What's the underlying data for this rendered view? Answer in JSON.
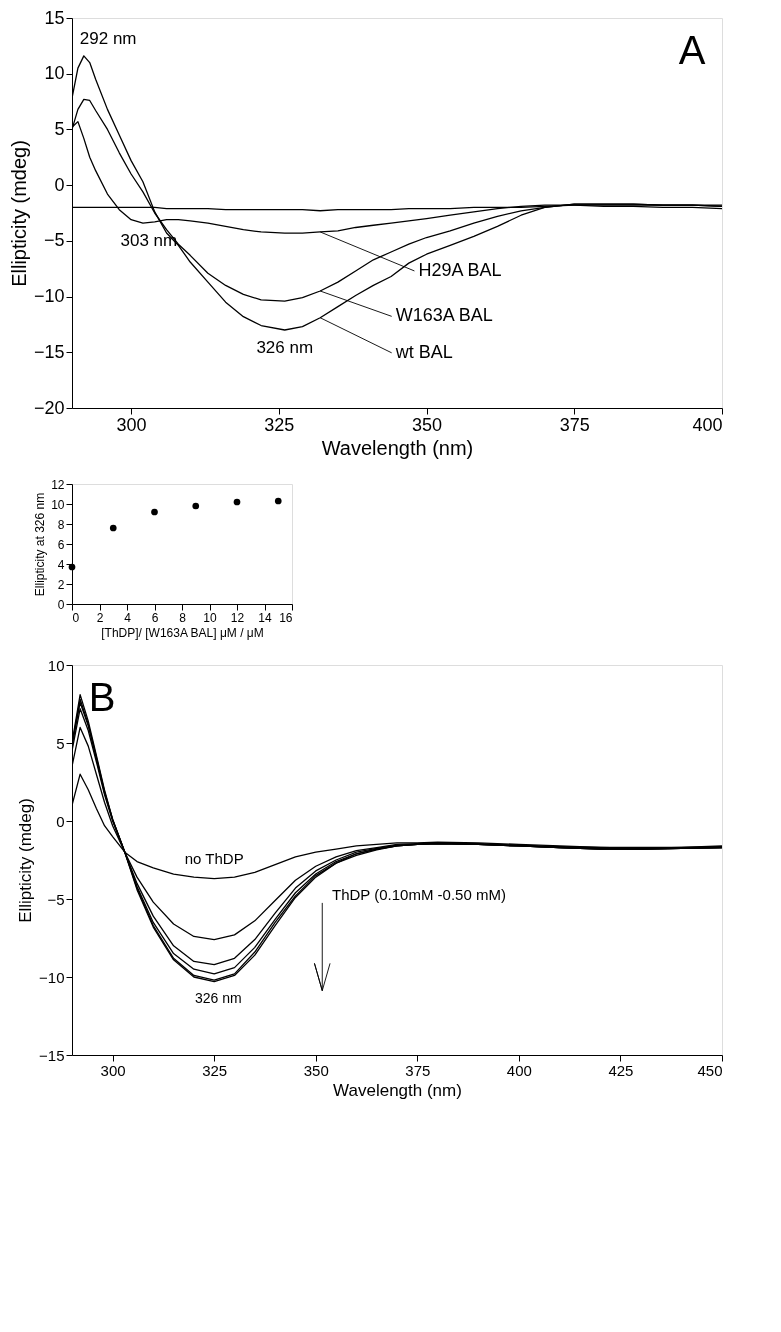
{
  "chart_data": [
    {
      "type": "line",
      "xlabel": "Wavelength (nm)",
      "ylabel": "Ellipticity (mdeg)",
      "xlim": [
        290,
        400
      ],
      "ylim": [
        -20,
        15
      ],
      "xticks": [
        300,
        325,
        350,
        375,
        400
      ],
      "yticks": [
        -20,
        -15,
        -10,
        -5,
        0,
        5,
        10,
        15
      ],
      "annotations": [
        "A",
        {
          "text": "292 nm",
          "x": 292,
          "y": 11.6
        },
        {
          "text": "303 nm",
          "x": 303,
          "y": -3.4
        },
        {
          "text": "326 nm",
          "x": 326,
          "y": -13.0
        }
      ],
      "x": [
        290,
        291,
        292,
        293,
        294,
        296,
        298,
        300,
        302,
        304,
        306,
        308,
        310,
        313,
        316,
        319,
        322,
        326,
        329,
        332,
        335,
        338,
        341,
        344,
        347,
        350,
        354,
        358,
        362,
        366,
        370,
        375,
        380,
        385,
        390,
        395,
        400
      ],
      "series": [
        {
          "color": "#000000",
          "values": [
            -2.0,
            -2.0,
            -2.0,
            -2.0,
            -2.0,
            -2.0,
            -2.0,
            -2.0,
            -2.0,
            -2.0,
            -2.1,
            -2.1,
            -2.1,
            -2.1,
            -2.2,
            -2.2,
            -2.2,
            -2.2,
            -2.2,
            -2.3,
            -2.2,
            -2.2,
            -2.2,
            -2.2,
            -2.1,
            -2.1,
            -2.1,
            -2.0,
            -2.0,
            -2.0,
            -1.9,
            -1.8,
            -1.8,
            -1.8,
            -1.8,
            -1.8,
            -1.8
          ]
        },
        {
          "name": "H29A BAL",
          "color": "#000000",
          "values": [
            5.2,
            5.7,
            4.2,
            2.5,
            1.3,
            -0.8,
            -2.2,
            -3.1,
            -3.4,
            -3.3,
            -3.1,
            -3.1,
            -3.2,
            -3.4,
            -3.7,
            -4.0,
            -4.2,
            -4.3,
            -4.3,
            -4.2,
            -4.1,
            -3.8,
            -3.6,
            -3.4,
            -3.2,
            -3.0,
            -2.7,
            -2.4,
            -2.1,
            -1.9,
            -1.8,
            -1.8,
            -1.9,
            -1.9,
            -2.0,
            -2.0,
            -2.1
          ]
        },
        {
          "name": "W163A BAL",
          "color": "#000000",
          "values": [
            5.0,
            6.8,
            7.7,
            7.6,
            6.7,
            5.0,
            2.9,
            1.0,
            -0.6,
            -2.5,
            -4.0,
            -5.3,
            -6.3,
            -7.9,
            -9.0,
            -9.8,
            -10.3,
            -10.4,
            -10.1,
            -9.5,
            -8.7,
            -7.7,
            -6.7,
            -6.0,
            -5.3,
            -4.7,
            -4.1,
            -3.4,
            -2.8,
            -2.3,
            -2.0,
            -1.7,
            -1.7,
            -1.7,
            -1.8,
            -1.8,
            -1.9
          ]
        },
        {
          "name": "wt BAL",
          "color": "#000000",
          "values": [
            7.8,
            10.5,
            11.6,
            11.0,
            9.5,
            6.8,
            4.5,
            2.2,
            0.3,
            -2.4,
            -4.3,
            -5.4,
            -6.9,
            -8.7,
            -10.5,
            -11.8,
            -12.6,
            -13.0,
            -12.7,
            -11.9,
            -10.9,
            -9.9,
            -9.0,
            -8.2,
            -7.0,
            -6.2,
            -5.4,
            -4.6,
            -3.7,
            -2.7,
            -2.0,
            -1.7,
            -1.7,
            -1.7,
            -1.8,
            -1.8,
            -1.9
          ]
        }
      ]
    },
    {
      "type": "line",
      "xlabel": "Wavelength (nm)",
      "ylabel": "Ellipticity (mdeg)",
      "xlim": [
        290,
        450
      ],
      "ylim": [
        -15,
        10
      ],
      "xticks": [
        300,
        325,
        350,
        375,
        400,
        425,
        450
      ],
      "yticks": [
        -15,
        -10,
        -5,
        0,
        5,
        10
      ],
      "annotations": [
        "B",
        {
          "text": "326 nm",
          "x": 326,
          "y": -10.3
        },
        "ThDP (0.10mM -0.50 mM)"
      ],
      "x": [
        290,
        292,
        294,
        296,
        298,
        300,
        303,
        306,
        310,
        315,
        320,
        325,
        330,
        335,
        340,
        345,
        350,
        355,
        360,
        365,
        370,
        375,
        380,
        390,
        400,
        410,
        420,
        430,
        440,
        450
      ],
      "series": [
        {
          "name": "no ThDP",
          "color": "#000000",
          "values": [
            1.0,
            3.0,
            2.0,
            0.8,
            -0.3,
            -1.0,
            -2.0,
            -2.6,
            -3.0,
            -3.4,
            -3.6,
            -3.7,
            -3.6,
            -3.3,
            -2.8,
            -2.3,
            -2.0,
            -1.8,
            -1.6,
            -1.5,
            -1.4,
            -1.4,
            -1.35,
            -1.4,
            -1.5,
            -1.6,
            -1.7,
            -1.7,
            -1.7,
            -1.6
          ]
        },
        {
          "color": "#000000",
          "values": [
            3.5,
            6.0,
            4.8,
            3.0,
            1.2,
            -0.3,
            -2.0,
            -3.6,
            -5.2,
            -6.6,
            -7.4,
            -7.6,
            -7.3,
            -6.4,
            -5.1,
            -3.8,
            -2.9,
            -2.3,
            -1.9,
            -1.7,
            -1.5,
            -1.45,
            -1.4,
            -1.45,
            -1.55,
            -1.65,
            -1.7,
            -1.75,
            -1.7,
            -1.65
          ]
        },
        {
          "color": "#000000",
          "values": [
            4.5,
            7.2,
            5.8,
            3.8,
            1.7,
            0.0,
            -2.0,
            -4.0,
            -6.1,
            -8.0,
            -9.0,
            -9.2,
            -8.8,
            -7.6,
            -5.9,
            -4.3,
            -3.2,
            -2.5,
            -2.0,
            -1.75,
            -1.55,
            -1.5,
            -1.45,
            -1.5,
            -1.6,
            -1.7,
            -1.75,
            -1.8,
            -1.75,
            -1.7
          ]
        },
        {
          "color": "#000000",
          "values": [
            4.8,
            7.6,
            6.1,
            4.0,
            1.8,
            0.1,
            -2.0,
            -4.2,
            -6.5,
            -8.5,
            -9.5,
            -9.8,
            -9.4,
            -8.1,
            -6.3,
            -4.6,
            -3.4,
            -2.6,
            -2.1,
            -1.8,
            -1.6,
            -1.5,
            -1.45,
            -1.5,
            -1.6,
            -1.7,
            -1.8,
            -1.8,
            -1.75,
            -1.7
          ]
        },
        {
          "color": "#000000",
          "values": [
            4.9,
            7.8,
            6.2,
            4.1,
            1.9,
            0.1,
            -2.0,
            -4.3,
            -6.7,
            -8.8,
            -9.9,
            -10.2,
            -9.8,
            -8.4,
            -6.5,
            -4.8,
            -3.5,
            -2.7,
            -2.1,
            -1.8,
            -1.6,
            -1.5,
            -1.45,
            -1.5,
            -1.6,
            -1.7,
            -1.8,
            -1.8,
            -1.75,
            -1.7
          ]
        },
        {
          "color": "#000000",
          "values": [
            5.0,
            8.1,
            6.4,
            4.2,
            2.0,
            0.1,
            -2.0,
            -4.4,
            -6.8,
            -8.9,
            -10.0,
            -10.3,
            -9.9,
            -8.6,
            -6.7,
            -4.9,
            -3.6,
            -2.7,
            -2.2,
            -1.85,
            -1.6,
            -1.5,
            -1.45,
            -1.5,
            -1.6,
            -1.7,
            -1.8,
            -1.8,
            -1.75,
            -1.7
          ]
        }
      ]
    },
    {
      "type": "scatter",
      "marker": "circle",
      "xlabel": "[ThDP]/ [W163A BAL] μM / μM",
      "ylabel": "Ellipticity  at 326 nm",
      "xlim": [
        0,
        16
      ],
      "ylim": [
        0,
        12
      ],
      "xticks": [
        0,
        2,
        4,
        6,
        8,
        10,
        12,
        14,
        16
      ],
      "yticks": [
        0,
        2,
        4,
        6,
        8,
        10,
        12
      ],
      "x": [
        0,
        3,
        6,
        9,
        12,
        15
      ],
      "series": [
        {
          "color": "#000000",
          "values": [
            3.7,
            7.6,
            9.2,
            9.8,
            10.2,
            10.3
          ]
        }
      ]
    }
  ]
}
